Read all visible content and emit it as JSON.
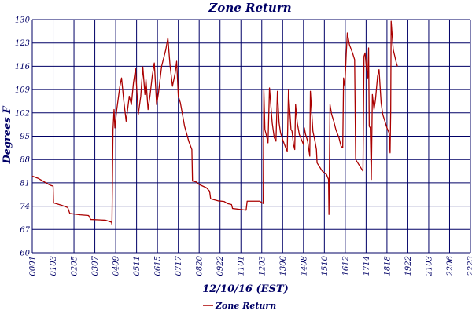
{
  "colors": {
    "background": "#ffffff",
    "grid": "#000066",
    "text": "#000066",
    "series": "#aa0000"
  },
  "chart_data": {
    "type": "line",
    "title": "Zone Return",
    "xlabel": "12/10/16 (EST)",
    "ylabel": "Degrees F",
    "ylim": [
      60,
      130
    ],
    "yticks": [
      60,
      67,
      74,
      81,
      88,
      95,
      102,
      109,
      116,
      123,
      130
    ],
    "grid": true,
    "legend_position": "bottom-center",
    "x_tick_labels": [
      "0001",
      "0103",
      "0205",
      "0307",
      "0409",
      "0511",
      "0615",
      "0717",
      "0820",
      "0922",
      "1101",
      "1203",
      "1306",
      "1408",
      "1510",
      "1612",
      "1714",
      "1818",
      "1922",
      "2103",
      "2206",
      "2223"
    ],
    "series": [
      {
        "name": "Zone Return",
        "color": "#aa0000",
        "points": [
          [
            0.0,
            83
          ],
          [
            0.3,
            82.3
          ],
          [
            0.6,
            81.2
          ],
          [
            0.8,
            80.5
          ],
          [
            0.9,
            80.2
          ],
          [
            1.0,
            80
          ],
          [
            1.02,
            75
          ],
          [
            1.4,
            74.3
          ],
          [
            1.7,
            73.6
          ],
          [
            1.8,
            71.8
          ],
          [
            2.3,
            71.4
          ],
          [
            2.7,
            71.2
          ],
          [
            2.8,
            70
          ],
          [
            3.5,
            69.8
          ],
          [
            3.8,
            69.2
          ],
          [
            3.82,
            68.5
          ],
          [
            3.87,
            97
          ],
          [
            3.92,
            103
          ],
          [
            3.96,
            97.5
          ],
          [
            4.05,
            103
          ],
          [
            4.2,
            110
          ],
          [
            4.28,
            112.5
          ],
          [
            4.38,
            106
          ],
          [
            4.5,
            99.5
          ],
          [
            4.65,
            107
          ],
          [
            4.75,
            104.5
          ],
          [
            4.85,
            111
          ],
          [
            4.95,
            115.3
          ],
          [
            5.08,
            101.5
          ],
          [
            5.2,
            107
          ],
          [
            5.3,
            115.8
          ],
          [
            5.4,
            107.5
          ],
          [
            5.45,
            112
          ],
          [
            5.55,
            103
          ],
          [
            5.65,
            107.5
          ],
          [
            5.75,
            113
          ],
          [
            5.85,
            117
          ],
          [
            5.96,
            104.5
          ],
          [
            6.05,
            108
          ],
          [
            6.2,
            116
          ],
          [
            6.4,
            121
          ],
          [
            6.5,
            124.5
          ],
          [
            6.6,
            116.5
          ],
          [
            6.72,
            110
          ],
          [
            6.85,
            114
          ],
          [
            6.92,
            117.5
          ],
          [
            7.0,
            107
          ],
          [
            7.1,
            105
          ],
          [
            7.3,
            98
          ],
          [
            7.5,
            93.5
          ],
          [
            7.65,
            91
          ],
          [
            7.68,
            81.5
          ],
          [
            7.85,
            81.3
          ],
          [
            8.0,
            80.5
          ],
          [
            8.35,
            79.5
          ],
          [
            8.5,
            78.5
          ],
          [
            8.55,
            76.2
          ],
          [
            8.9,
            75.6
          ],
          [
            9.2,
            75.4
          ],
          [
            9.35,
            74.8
          ],
          [
            9.55,
            74.5
          ],
          [
            9.6,
            73.3
          ],
          [
            10.0,
            73
          ],
          [
            10.25,
            72.8
          ],
          [
            10.3,
            75.5
          ],
          [
            10.9,
            75.5
          ],
          [
            11.07,
            74.8
          ],
          [
            11.1,
            108.8
          ],
          [
            11.15,
            97
          ],
          [
            11.22,
            95.3
          ],
          [
            11.3,
            93
          ],
          [
            11.37,
            109.5
          ],
          [
            11.5,
            99
          ],
          [
            11.6,
            94.5
          ],
          [
            11.68,
            93.5
          ],
          [
            11.75,
            108.5
          ],
          [
            11.83,
            99
          ],
          [
            11.9,
            96
          ],
          [
            12.0,
            94
          ],
          [
            12.15,
            91.5
          ],
          [
            12.22,
            90.5
          ],
          [
            12.28,
            108.8
          ],
          [
            12.4,
            97
          ],
          [
            12.45,
            96.5
          ],
          [
            12.52,
            92.5
          ],
          [
            12.58,
            91
          ],
          [
            12.62,
            104.5
          ],
          [
            12.7,
            99
          ],
          [
            12.8,
            95.5
          ],
          [
            12.9,
            94
          ],
          [
            13.0,
            92.5
          ],
          [
            13.04,
            97.5
          ],
          [
            13.1,
            95.5
          ],
          [
            13.2,
            93.5
          ],
          [
            13.3,
            89
          ],
          [
            13.33,
            108.5
          ],
          [
            13.45,
            96.5
          ],
          [
            13.55,
            93.5
          ],
          [
            13.62,
            91
          ],
          [
            13.65,
            87
          ],
          [
            13.75,
            86
          ],
          [
            13.9,
            84.5
          ],
          [
            14.1,
            83.5
          ],
          [
            14.2,
            82
          ],
          [
            14.22,
            71.5
          ],
          [
            14.27,
            104.5
          ],
          [
            14.35,
            101.5
          ],
          [
            14.45,
            99.5
          ],
          [
            14.55,
            97
          ],
          [
            14.7,
            94.5
          ],
          [
            14.8,
            92
          ],
          [
            14.88,
            91.5
          ],
          [
            14.92,
            112.5
          ],
          [
            14.98,
            110
          ],
          [
            15.05,
            120
          ],
          [
            15.1,
            126
          ],
          [
            15.2,
            122.5
          ],
          [
            15.35,
            120
          ],
          [
            15.45,
            118
          ],
          [
            15.5,
            88
          ],
          [
            15.6,
            87
          ],
          [
            15.75,
            85.5
          ],
          [
            15.85,
            84.5
          ],
          [
            15.9,
            119
          ],
          [
            15.95,
            120
          ],
          [
            16.0,
            116.5
          ],
          [
            16.08,
            112.5
          ],
          [
            16.12,
            121.5
          ],
          [
            16.15,
            98
          ],
          [
            16.2,
            97.5
          ],
          [
            16.25,
            82
          ],
          [
            16.3,
            107.5
          ],
          [
            16.38,
            103
          ],
          [
            16.45,
            106
          ],
          [
            16.55,
            113
          ],
          [
            16.62,
            115
          ],
          [
            16.72,
            105
          ],
          [
            16.8,
            101.5
          ],
          [
            16.9,
            99.5
          ],
          [
            17.0,
            97.5
          ],
          [
            17.1,
            96
          ],
          [
            17.15,
            90
          ],
          [
            17.18,
            103
          ],
          [
            17.2,
            129.5
          ],
          [
            17.3,
            121
          ],
          [
            17.45,
            117
          ],
          [
            17.5,
            116
          ]
        ]
      }
    ]
  }
}
